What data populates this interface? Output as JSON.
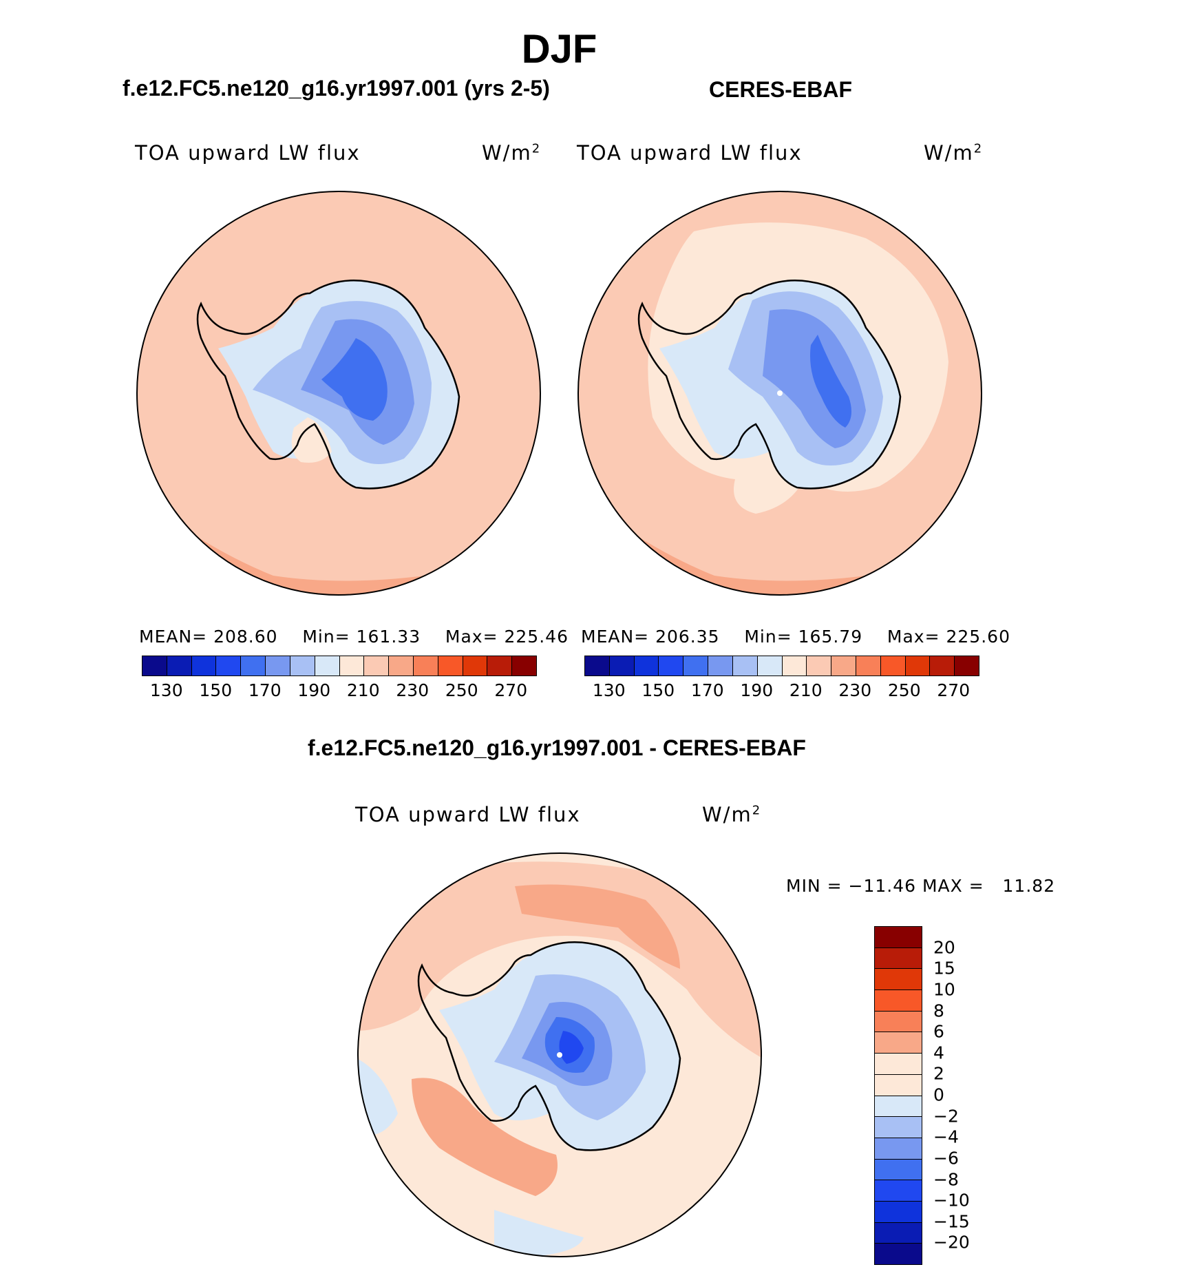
{
  "figure": {
    "season": "DJF",
    "left_title": "f.e12.FC5.ne120_g16.yr1997.001 (yrs 2-5)",
    "right_title": "CERES-EBAF",
    "diff_title": "f.e12.FC5.ne120_g16.yr1997.001 - CERES-EBAF"
  },
  "panels": [
    {
      "variable": "TOA upward LW flux",
      "units": "W/m",
      "units_exp": "2",
      "mean_label": "MEAN=",
      "mean": "208.60",
      "min_label": "Min=",
      "min": "161.33",
      "max_label": "Max=",
      "max": "225.46"
    },
    {
      "variable": "TOA upward LW flux",
      "units": "W/m",
      "units_exp": "2",
      "mean_label": "MEAN=",
      "mean": "206.35",
      "min_label": "Min=",
      "min": "165.79",
      "max_label": "Max=",
      "max": "225.60"
    },
    {
      "variable": "TOA upward LW flux",
      "units": "W/m",
      "units_exp": "2",
      "min_label": "MIN =",
      "min": "−11.46",
      "max_label": "MAX =",
      "max": "11.82"
    }
  ],
  "colors": {
    "abs_scale": [
      "#0a0a8c",
      "#0a1cb4",
      "#0f33dc",
      "#2048f0",
      "#4070f0",
      "#7898f0",
      "#a8c0f4",
      "#d8e8f8",
      "#fde8d8",
      "#fbcab4",
      "#f8a888",
      "#f88058",
      "#f85828",
      "#e03808",
      "#b81c08",
      "#880000"
    ],
    "diff_scale": [
      "#880000",
      "#b81c08",
      "#e03808",
      "#f85828",
      "#f88058",
      "#f8a888",
      "#fde8d8",
      "#fde8d8",
      "#d8e8f8",
      "#a8c0f4",
      "#7898f0",
      "#4070f0",
      "#2048f0",
      "#0f33dc",
      "#0a1cb4",
      "#0a0a8c"
    ]
  },
  "chart_data": [
    {
      "type": "heatmap",
      "projection": "south-polar-stereographic",
      "title": "f.e12.FC5.ne120_g16.yr1997.001 (yrs 2-5)",
      "variable": "TOA upward LW flux",
      "units": "W/m2",
      "stats": {
        "mean": 208.6,
        "min": 161.33,
        "max": 225.46
      },
      "colorbar_levels": [
        130,
        140,
        150,
        160,
        170,
        180,
        190,
        200,
        210,
        220,
        230,
        240,
        250,
        260,
        270
      ],
      "colorbar_tick_labels": [
        "130",
        "150",
        "170",
        "190",
        "210",
        "230",
        "250",
        "270"
      ]
    },
    {
      "type": "heatmap",
      "projection": "south-polar-stereographic",
      "title": "CERES-EBAF",
      "variable": "TOA upward LW flux",
      "units": "W/m2",
      "stats": {
        "mean": 206.35,
        "min": 165.79,
        "max": 225.6
      },
      "colorbar_levels": [
        130,
        140,
        150,
        160,
        170,
        180,
        190,
        200,
        210,
        220,
        230,
        240,
        250,
        260,
        270
      ],
      "colorbar_tick_labels": [
        "130",
        "150",
        "170",
        "190",
        "210",
        "230",
        "250",
        "270"
      ]
    },
    {
      "type": "heatmap",
      "projection": "south-polar-stereographic",
      "title": "f.e12.FC5.ne120_g16.yr1997.001 - CERES-EBAF",
      "variable": "TOA upward LW flux",
      "units": "W/m2",
      "stats": {
        "min": -11.46,
        "max": 11.82
      },
      "colorbar_levels": [
        20,
        15,
        10,
        8,
        6,
        4,
        2,
        0,
        -2,
        -4,
        -6,
        -8,
        -10,
        -15,
        -20
      ],
      "colorbar_tick_labels": [
        "20",
        "15",
        "10",
        "8",
        "6",
        "4",
        "2",
        "0",
        "−2",
        "−4",
        "−6",
        "−8",
        "−10",
        "−15",
        "−20"
      ]
    }
  ]
}
